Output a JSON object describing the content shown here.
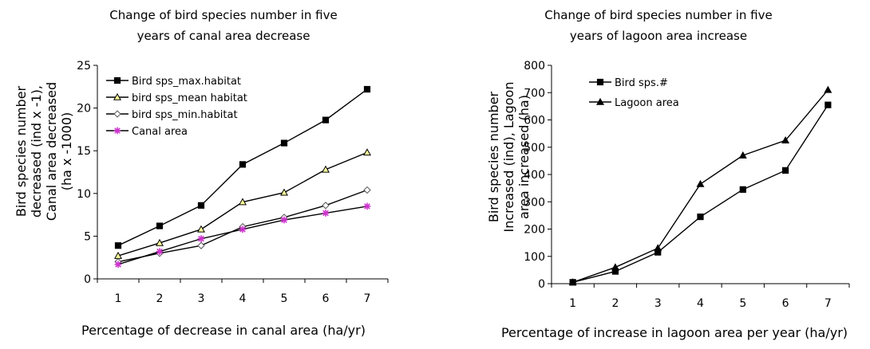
{
  "chart_data": [
    {
      "type": "line",
      "title": [
        "Change of bird species number in five",
        "years of canal area decrease"
      ],
      "xlabel": "Percentage of decrease in canal area (ha/yr)",
      "ylabel": [
        "Bird species number",
        "decreased (ind x -1),",
        "Canal area decreased",
        "(ha x -1000)"
      ],
      "x": [
        1,
        2,
        3,
        4,
        5,
        6,
        7
      ],
      "ylim": [
        0,
        25
      ],
      "yticks": [
        0,
        5,
        10,
        15,
        20,
        25
      ],
      "grid": false,
      "legend": "top-left",
      "series": [
        {
          "name": "Bird sps_max.habitat",
          "marker": "square",
          "color": "#000000",
          "marker_fill": "#000000",
          "values": [
            3.9,
            6.2,
            8.6,
            13.4,
            15.9,
            18.6,
            22.2
          ]
        },
        {
          "name": "bird sps_mean habitat",
          "marker": "triangle",
          "color": "#000000",
          "marker_fill": "#ffff99",
          "values": [
            2.7,
            4.2,
            5.8,
            9.0,
            10.1,
            12.8,
            14.8
          ]
        },
        {
          "name": "bird sps_min.habitat",
          "marker": "diamond",
          "color": "#000000",
          "marker_fill": "#ffffff",
          "values": [
            2.0,
            3.0,
            3.9,
            6.1,
            7.2,
            8.6,
            10.4
          ]
        },
        {
          "name": "Canal area",
          "marker": "star",
          "color": "#000000",
          "marker_fill": "#cc33cc",
          "values": [
            1.7,
            3.2,
            4.7,
            5.8,
            6.9,
            7.7,
            8.5
          ]
        }
      ]
    },
    {
      "type": "line",
      "title": [
        "Change of bird species number in five",
        "years of lagoon area increase"
      ],
      "xlabel": "Percentage of increase in lagoon area per year (ha/yr)",
      "ylabel": [
        "Bird species number",
        "Increased (ind), Lagoon",
        "area increased (ha)"
      ],
      "x": [
        1,
        2,
        3,
        4,
        5,
        6,
        7
      ],
      "ylim": [
        0,
        800
      ],
      "yticks": [
        0,
        100,
        200,
        300,
        400,
        500,
        600,
        700,
        800
      ],
      "grid": false,
      "legend": "top-left",
      "series": [
        {
          "name": "Bird sps.#",
          "marker": "square",
          "color": "#000000",
          "marker_fill": "#000000",
          "values": [
            5,
            45,
            115,
            245,
            345,
            415,
            655
          ]
        },
        {
          "name": "Lagoon area",
          "marker": "triangle",
          "color": "#000000",
          "marker_fill": "#000000",
          "values": [
            5,
            60,
            130,
            365,
            470,
            525,
            710
          ]
        }
      ]
    }
  ]
}
